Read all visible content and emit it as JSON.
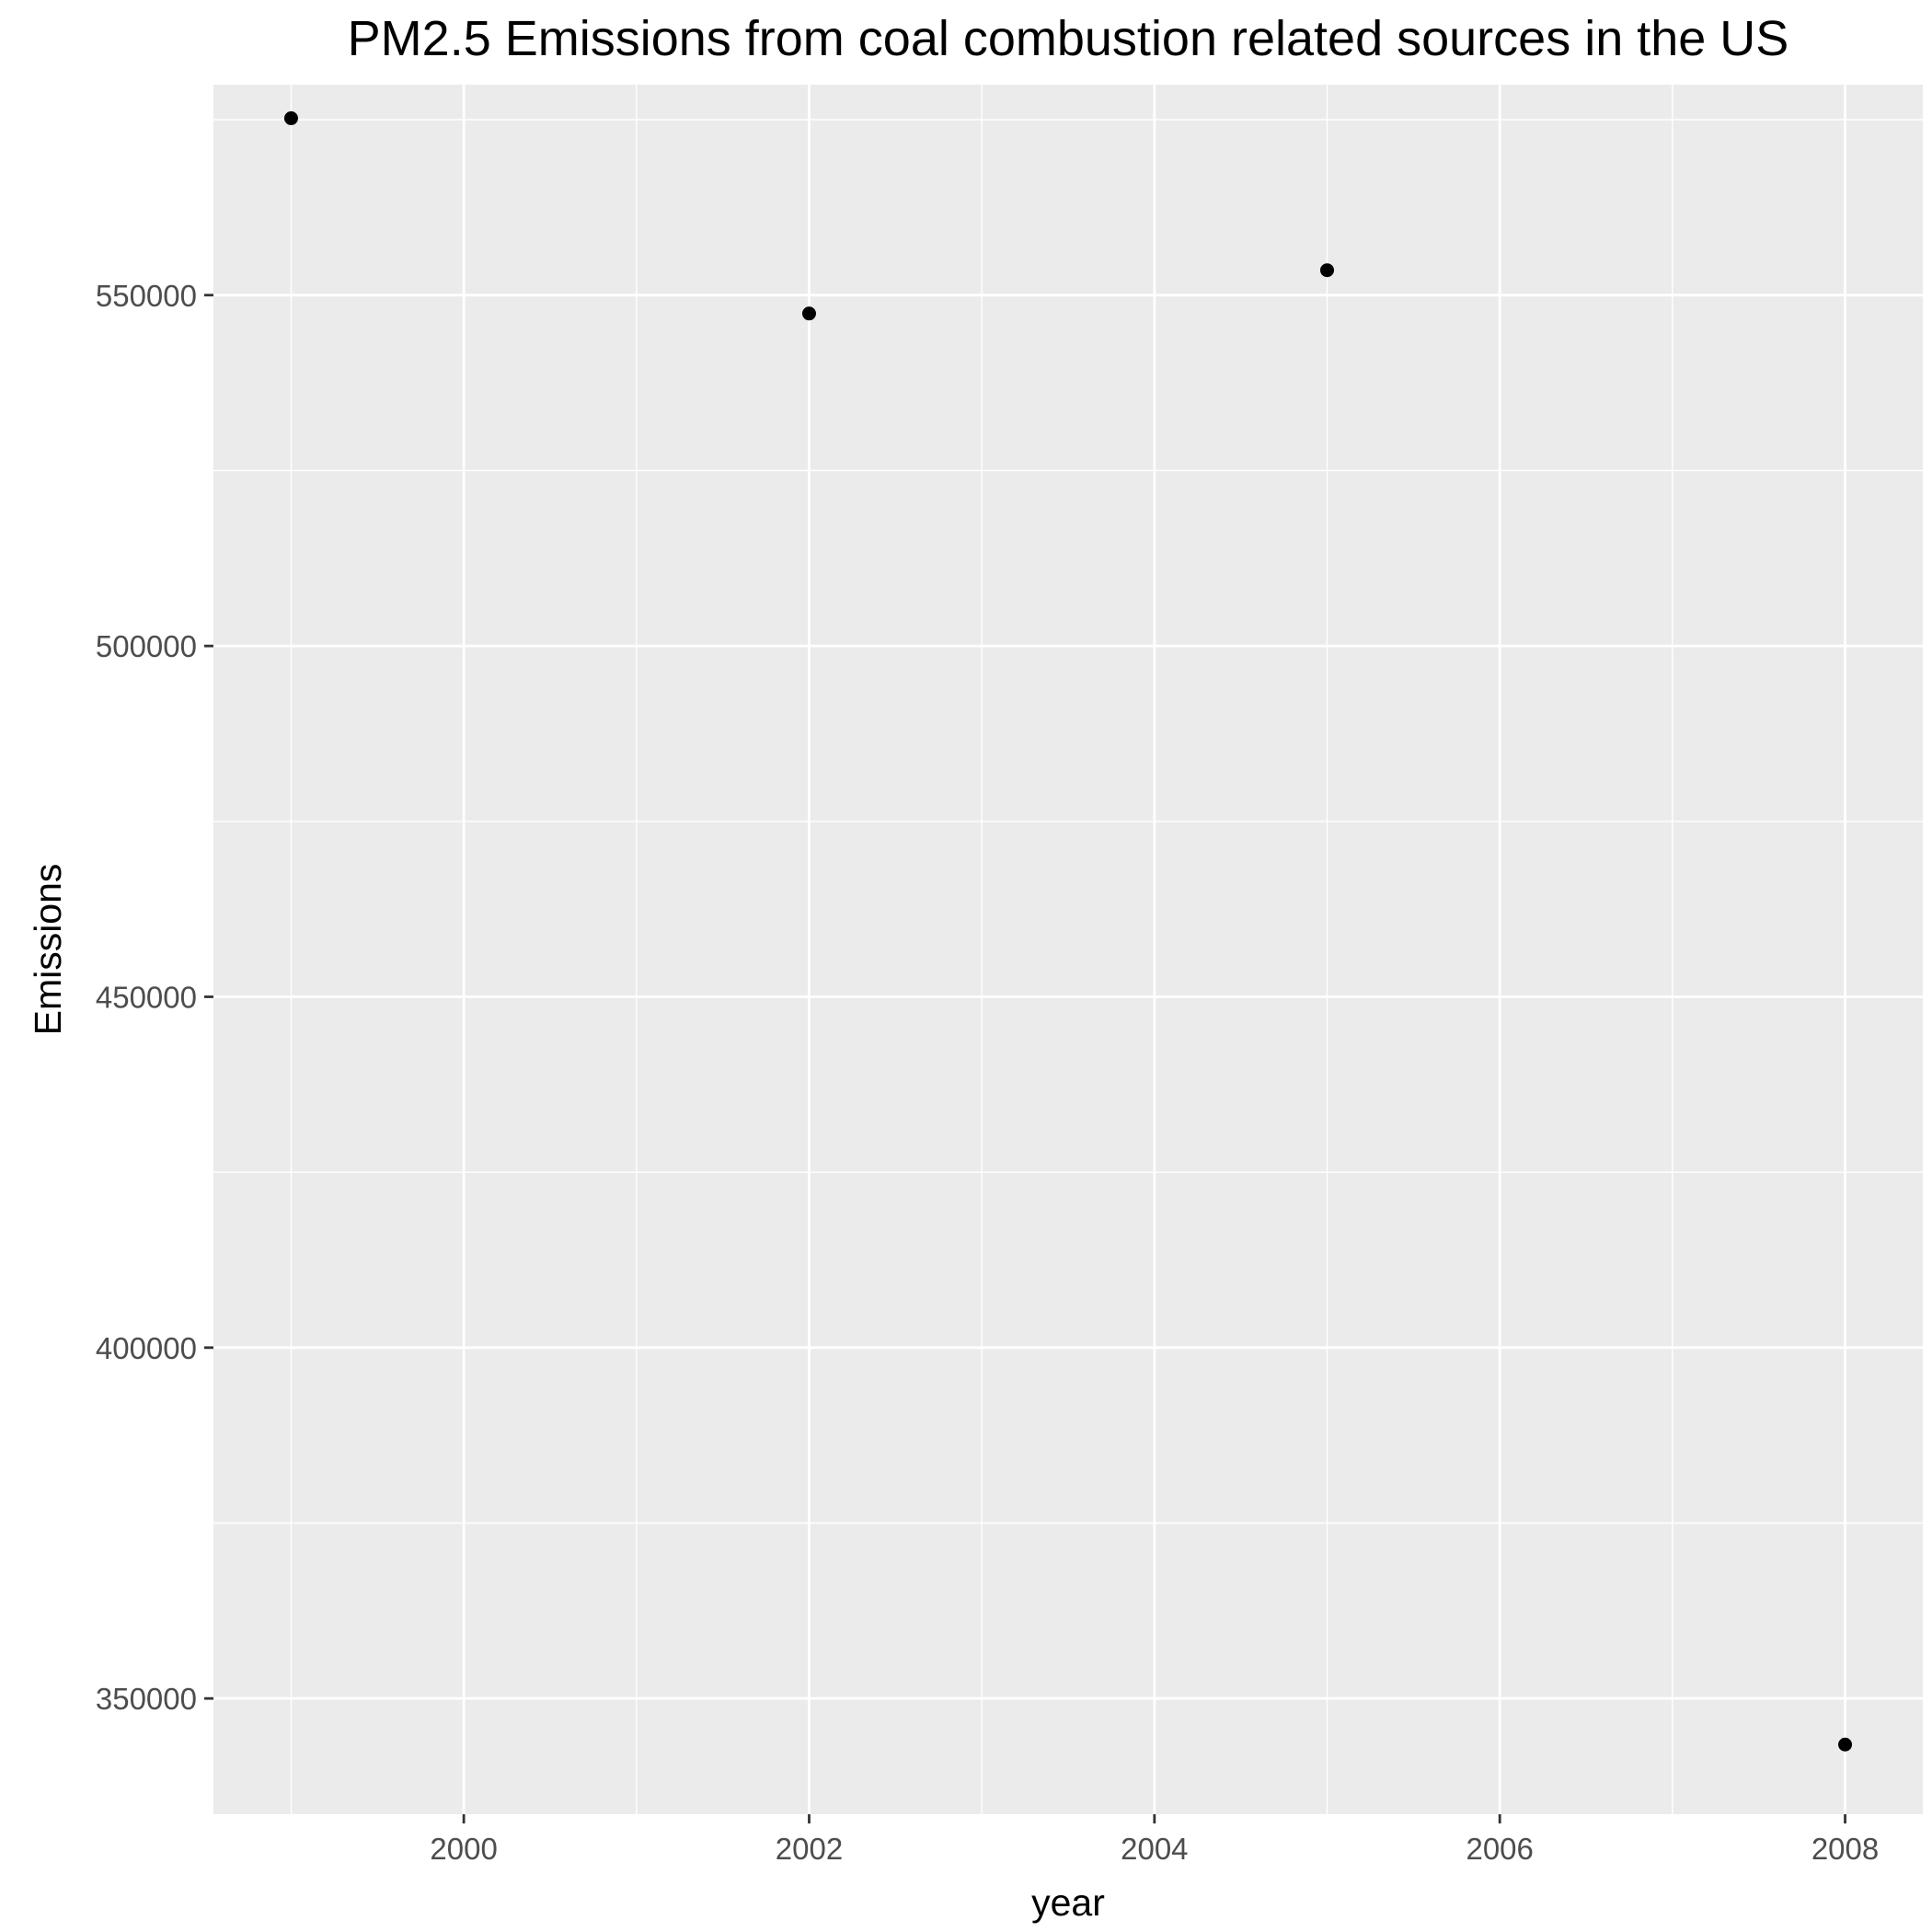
{
  "chart_data": {
    "type": "scatter",
    "title": "PM2.5 Emissions from coal combustion related sources in the US",
    "xlabel": "year",
    "ylabel": "Emissions",
    "xlim": [
      1998.55,
      2008.45
    ],
    "ylim": [
      333500,
      580000
    ],
    "x_ticks": [
      2000,
      2002,
      2004,
      2006,
      2008
    ],
    "x_tick_labels": [
      "2000",
      "2002",
      "2004",
      "2006",
      "2008"
    ],
    "x_minor_ticks": [
      1999,
      2001,
      2003,
      2005,
      2007
    ],
    "y_ticks": [
      350000,
      400000,
      450000,
      500000,
      550000
    ],
    "y_tick_labels": [
      "350000",
      "400000",
      "450000",
      "500000",
      "550000"
    ],
    "y_minor_ticks": [
      375000,
      425000,
      475000,
      525000,
      575000
    ],
    "grid": true,
    "legend": "none",
    "colors": {
      "panel_bg": "#EBEBEB",
      "grid": "#FFFFFF",
      "point": "#000000",
      "tick_text": "#4D4D4D"
    },
    "series": [
      {
        "x": [
          1999,
          2002,
          2005,
          2008
        ],
        "y": [
          575207,
          547380,
          553550,
          343432
        ]
      }
    ]
  }
}
